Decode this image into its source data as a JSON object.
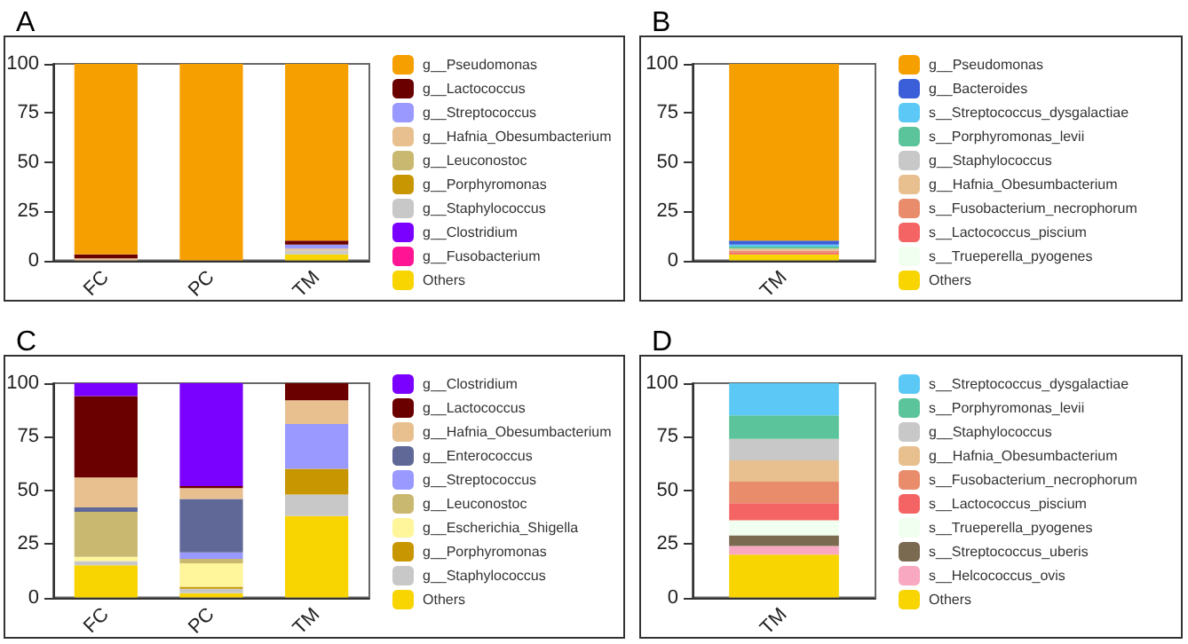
{
  "chart_data": [
    {
      "type": "bar",
      "title": "A",
      "categories": [
        "FC",
        "PC",
        "TM"
      ],
      "stacked": true,
      "legend": "right",
      "grid": false,
      "ylim": [
        0,
        100
      ],
      "yticks": [
        0,
        25,
        50,
        75,
        100
      ],
      "series": [
        {
          "name": "Others",
          "color": "#f8d400",
          "values": [
            0,
            0,
            3
          ]
        },
        {
          "name": "g__Fusobacterium",
          "color": "#ff1493",
          "values": [
            0,
            0,
            0
          ]
        },
        {
          "name": "g__Clostridium",
          "color": "#7a00ff",
          "values": [
            0,
            0,
            0
          ]
        },
        {
          "name": "g__Staphylococcus",
          "color": "#c8c8c8",
          "values": [
            0,
            0,
            2
          ]
        },
        {
          "name": "g__Porphyromonas",
          "color": "#c89600",
          "values": [
            0,
            0,
            0
          ]
        },
        {
          "name": "g__Leuconostoc",
          "color": "#c8b870",
          "values": [
            0,
            0,
            0
          ]
        },
        {
          "name": "g__Hafnia_Obesumbacterium",
          "color": "#e8c090",
          "values": [
            1,
            0,
            1
          ]
        },
        {
          "name": "g__Streptococcus",
          "color": "#9999ff",
          "values": [
            0,
            0,
            2
          ]
        },
        {
          "name": "g__Lactococcus",
          "color": "#6b0000",
          "values": [
            2,
            0,
            2
          ]
        },
        {
          "name": "g__Pseudomonas",
          "color": "#f5a000",
          "values": [
            97,
            100,
            90
          ]
        }
      ]
    },
    {
      "type": "bar",
      "title": "B",
      "categories": [
        "TM"
      ],
      "stacked": true,
      "legend": "right",
      "grid": false,
      "ylim": [
        0,
        100
      ],
      "yticks": [
        0,
        25,
        50,
        75,
        100
      ],
      "series": [
        {
          "name": "Others",
          "color": "#f8d400",
          "values": [
            3
          ]
        },
        {
          "name": "s__Trueperella_pyogenes",
          "color": "#f0fff0",
          "values": [
            0
          ]
        },
        {
          "name": "s__Lactococcus_piscium",
          "color": "#f56464",
          "values": [
            1
          ]
        },
        {
          "name": "s__Fusobacterium_necrophorum",
          "color": "#e88c6c",
          "values": [
            1
          ]
        },
        {
          "name": "g__Hafnia_Obesumbacterium",
          "color": "#e8c090",
          "values": [
            1
          ]
        },
        {
          "name": "g__Staphylococcus",
          "color": "#c8c8c8",
          "values": [
            0
          ]
        },
        {
          "name": "s__Porphyromonas_levii",
          "color": "#5cc49a",
          "values": [
            1
          ]
        },
        {
          "name": "s__Streptococcus_dysgalactiae",
          "color": "#5bc8f5",
          "values": [
            1
          ]
        },
        {
          "name": "g__Bacteroides",
          "color": "#3a5fd9",
          "values": [
            2
          ]
        },
        {
          "name": "g__Pseudomonas",
          "color": "#f5a000",
          "values": [
            90
          ]
        }
      ]
    },
    {
      "type": "bar",
      "title": "C",
      "categories": [
        "FC",
        "PC",
        "TM"
      ],
      "stacked": true,
      "legend": "right",
      "grid": false,
      "ylim": [
        0,
        100
      ],
      "yticks": [
        0,
        25,
        50,
        75,
        100
      ],
      "series": [
        {
          "name": "Others",
          "color": "#f8d400",
          "values": [
            15,
            2,
            38
          ]
        },
        {
          "name": "g__Staphylococcus",
          "color": "#c8c8c8",
          "values": [
            2,
            2,
            10
          ]
        },
        {
          "name": "g__Porphyromonas",
          "color": "#c89600",
          "values": [
            0,
            1,
            12
          ]
        },
        {
          "name": "g__Escherichia_Shigella",
          "color": "#fff59a",
          "values": [
            2,
            11,
            0
          ]
        },
        {
          "name": "g__Leuconostoc",
          "color": "#c8b870",
          "values": [
            21,
            2,
            0
          ]
        },
        {
          "name": "g__Streptococcus",
          "color": "#9999ff",
          "values": [
            0,
            3,
            21
          ]
        },
        {
          "name": "g__Enterococcus",
          "color": "#606898",
          "values": [
            2,
            25,
            0
          ]
        },
        {
          "name": "g__Hafnia_Obesumbacterium",
          "color": "#e8c090",
          "values": [
            14,
            5,
            11
          ]
        },
        {
          "name": "g__Lactococcus",
          "color": "#6b0000",
          "values": [
            38,
            1,
            8
          ]
        },
        {
          "name": "g__Clostridium",
          "color": "#7a00ff",
          "values": [
            6,
            48,
            0
          ]
        }
      ]
    },
    {
      "type": "bar",
      "title": "D",
      "categories": [
        "TM"
      ],
      "stacked": true,
      "legend": "right",
      "grid": false,
      "ylim": [
        0,
        100
      ],
      "yticks": [
        0,
        25,
        50,
        75,
        100
      ],
      "series": [
        {
          "name": "Others",
          "color": "#f8d400",
          "values": [
            20
          ]
        },
        {
          "name": "s__Helcococcus_ovis",
          "color": "#f8a8c0",
          "values": [
            4
          ]
        },
        {
          "name": "s__Streptococcus_uberis",
          "color": "#7a6a50",
          "values": [
            5
          ]
        },
        {
          "name": "s__Trueperella_pyogenes",
          "color": "#f0fff0",
          "values": [
            7
          ]
        },
        {
          "name": "s__Lactococcus_piscium",
          "color": "#f56464",
          "values": [
            8
          ]
        },
        {
          "name": "s__Fusobacterium_necrophorum",
          "color": "#e88c6c",
          "values": [
            10
          ]
        },
        {
          "name": "g__Hafnia_Obesumbacterium",
          "color": "#e8c090",
          "values": [
            10
          ]
        },
        {
          "name": "g__Staphylococcus",
          "color": "#c8c8c8",
          "values": [
            10
          ]
        },
        {
          "name": "s__Porphyromonas_levii",
          "color": "#5cc49a",
          "values": [
            11
          ]
        },
        {
          "name": "s__Streptococcus_dysgalactiae",
          "color": "#5bc8f5",
          "values": [
            15
          ]
        }
      ]
    }
  ]
}
